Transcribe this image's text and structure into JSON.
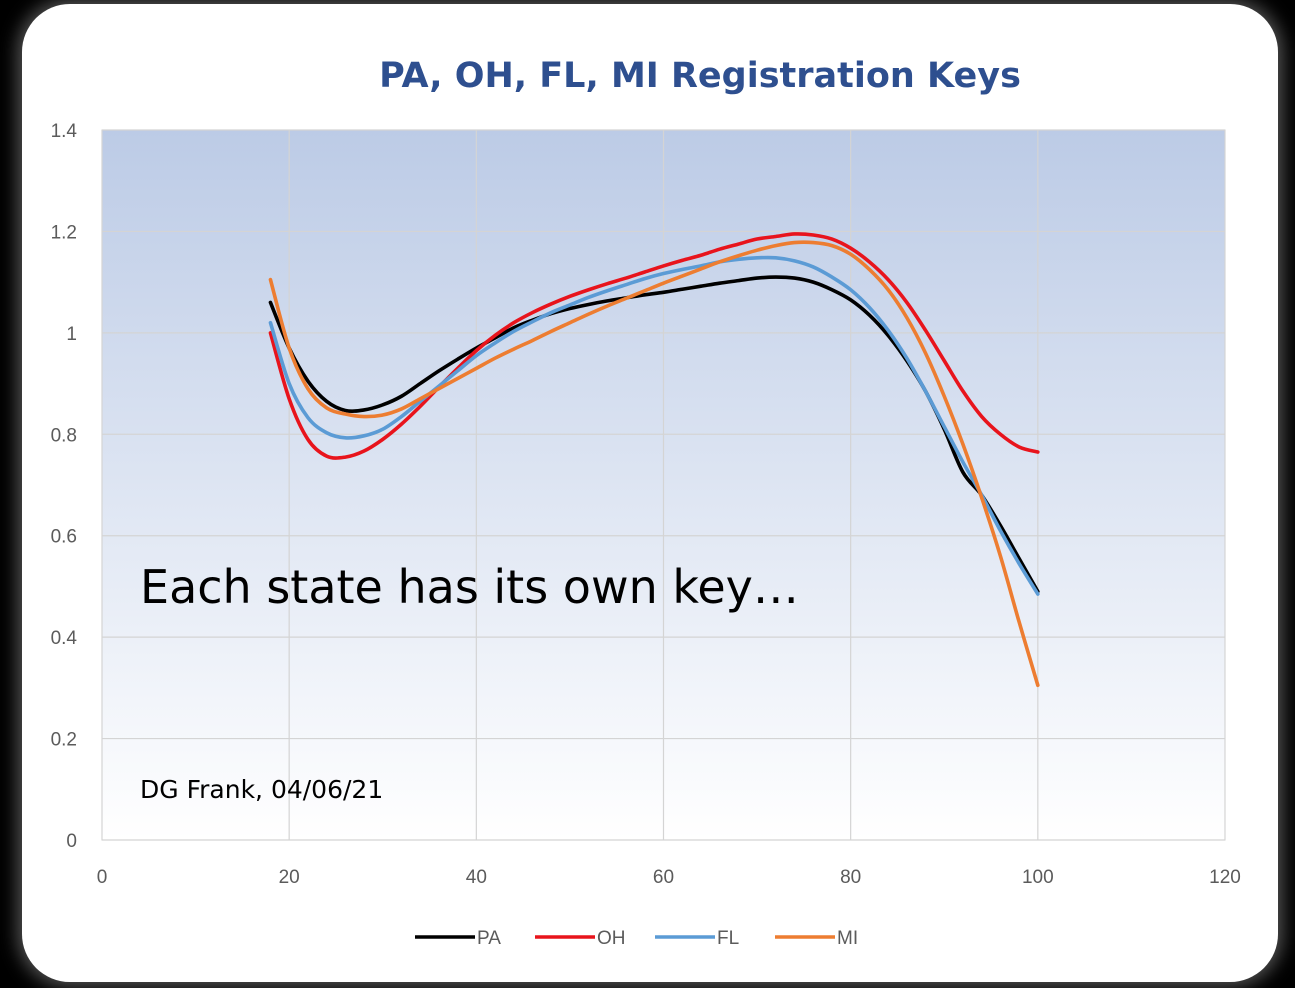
{
  "chart_data": {
    "type": "line",
    "title": "PA, OH, FL, MI Registration Keys",
    "xlabel": "",
    "ylabel": "",
    "xlim": [
      0,
      120
    ],
    "ylim": [
      0,
      1.4
    ],
    "xticks": [
      0,
      20,
      40,
      60,
      80,
      100,
      120
    ],
    "yticks": [
      0,
      0.2,
      0.4,
      0.6,
      0.8,
      1,
      1.2,
      1.4
    ],
    "ytick_labels": [
      "0",
      "0.2",
      "0.4",
      "0.6",
      "0.8",
      "1",
      "1.2",
      "1.4"
    ],
    "grid": true,
    "legend_position": "bottom",
    "annotations": [
      "Each state has its own key…",
      "DG Frank, 04/06/21"
    ],
    "series": [
      {
        "name": "PA",
        "color": "#000000",
        "x": [
          18,
          20,
          22,
          24,
          26,
          28,
          30,
          32,
          34,
          36,
          38,
          40,
          42,
          44,
          46,
          48,
          50,
          52,
          54,
          56,
          58,
          60,
          62,
          64,
          66,
          68,
          70,
          72,
          74,
          76,
          78,
          80,
          82,
          84,
          86,
          88,
          90,
          92,
          94,
          96,
          98,
          100
        ],
        "y": [
          1.06,
          0.97,
          0.905,
          0.865,
          0.847,
          0.848,
          0.858,
          0.875,
          0.9,
          0.925,
          0.948,
          0.97,
          0.99,
          1.01,
          1.025,
          1.038,
          1.048,
          1.056,
          1.063,
          1.069,
          1.075,
          1.08,
          1.086,
          1.092,
          1.098,
          1.103,
          1.108,
          1.11,
          1.108,
          1.1,
          1.085,
          1.065,
          1.035,
          0.995,
          0.945,
          0.885,
          0.81,
          0.725,
          0.68,
          0.62,
          0.555,
          0.49
        ]
      },
      {
        "name": "OH",
        "color": "#e8141c",
        "x": [
          18,
          20,
          22,
          24,
          26,
          28,
          30,
          32,
          34,
          36,
          38,
          40,
          42,
          44,
          46,
          48,
          50,
          52,
          54,
          56,
          58,
          60,
          62,
          64,
          66,
          68,
          70,
          72,
          74,
          76,
          78,
          80,
          82,
          84,
          86,
          88,
          90,
          92,
          94,
          96,
          98,
          100
        ],
        "y": [
          1.0,
          0.87,
          0.79,
          0.757,
          0.755,
          0.767,
          0.79,
          0.82,
          0.855,
          0.893,
          0.93,
          0.965,
          0.995,
          1.02,
          1.04,
          1.057,
          1.072,
          1.085,
          1.097,
          1.108,
          1.12,
          1.132,
          1.143,
          1.153,
          1.165,
          1.175,
          1.185,
          1.19,
          1.195,
          1.193,
          1.185,
          1.167,
          1.14,
          1.105,
          1.06,
          1.005,
          0.945,
          0.885,
          0.835,
          0.8,
          0.775,
          0.765
        ]
      },
      {
        "name": "FL",
        "color": "#5b9bd5",
        "x": [
          18,
          20,
          22,
          24,
          26,
          28,
          30,
          32,
          34,
          36,
          38,
          40,
          42,
          44,
          46,
          48,
          50,
          52,
          54,
          56,
          58,
          60,
          62,
          64,
          66,
          68,
          70,
          72,
          74,
          76,
          78,
          80,
          82,
          84,
          86,
          88,
          90,
          92,
          94,
          96,
          98,
          100
        ],
        "y": [
          1.02,
          0.9,
          0.833,
          0.803,
          0.793,
          0.797,
          0.81,
          0.835,
          0.865,
          0.895,
          0.925,
          0.955,
          0.98,
          1.003,
          1.022,
          1.04,
          1.055,
          1.07,
          1.083,
          1.095,
          1.107,
          1.117,
          1.125,
          1.132,
          1.14,
          1.145,
          1.148,
          1.148,
          1.142,
          1.13,
          1.11,
          1.085,
          1.05,
          1.005,
          0.95,
          0.885,
          0.815,
          0.745,
          0.68,
          0.61,
          0.545,
          0.485
        ]
      },
      {
        "name": "MI",
        "color": "#ed7d31",
        "x": [
          18,
          20,
          22,
          24,
          26,
          28,
          30,
          32,
          34,
          36,
          38,
          40,
          42,
          44,
          46,
          48,
          50,
          52,
          54,
          56,
          58,
          60,
          62,
          64,
          66,
          68,
          70,
          72,
          74,
          76,
          78,
          80,
          82,
          84,
          86,
          88,
          90,
          92,
          94,
          96,
          98,
          100
        ],
        "y": [
          1.105,
          0.97,
          0.89,
          0.852,
          0.84,
          0.835,
          0.838,
          0.85,
          0.87,
          0.89,
          0.91,
          0.93,
          0.95,
          0.968,
          0.985,
          1.003,
          1.02,
          1.037,
          1.053,
          1.068,
          1.083,
          1.098,
          1.112,
          1.126,
          1.14,
          1.152,
          1.163,
          1.172,
          1.178,
          1.178,
          1.172,
          1.155,
          1.125,
          1.085,
          1.03,
          0.96,
          0.875,
          0.78,
          0.675,
          0.56,
          0.43,
          0.305
        ]
      }
    ]
  }
}
